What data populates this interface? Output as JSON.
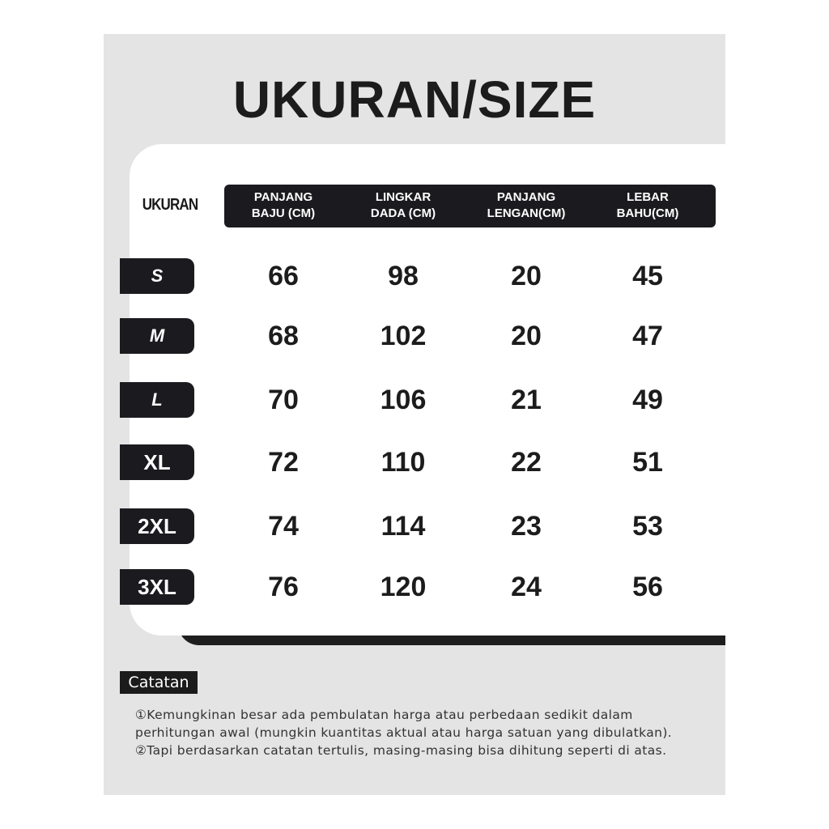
{
  "title": "UKURAN/SIZE",
  "table": {
    "size_label": "UKURAN",
    "columns": [
      [
        "PANJANG",
        "BAJU (CM)"
      ],
      [
        "LINGKAR",
        "DADA (CM)"
      ],
      [
        "PANJANG",
        "LENGAN(CM)"
      ],
      [
        "LEBAR",
        "BAHU(CM)"
      ]
    ],
    "rows": [
      {
        "size": "S",
        "values": [
          "66",
          "98",
          "20",
          "45"
        ]
      },
      {
        "size": "M",
        "values": [
          "68",
          "102",
          "20",
          "47"
        ]
      },
      {
        "size": "L",
        "values": [
          "70",
          "106",
          "21",
          "49"
        ]
      },
      {
        "size": "XL",
        "values": [
          "72",
          "110",
          "22",
          "51"
        ]
      },
      {
        "size": "2XL",
        "values": [
          "74",
          "114",
          "23",
          "53"
        ]
      },
      {
        "size": "3XL",
        "values": [
          "76",
          "120",
          "24",
          "56"
        ]
      }
    ]
  },
  "notes": {
    "label": "Catatan",
    "lines": [
      "①Kemungkinan besar ada pembulatan harga atau perbedaan sedikit dalam",
      "perhitungan awal (mungkin kuantitas aktual atau harga satuan yang dibulatkan).",
      "②Tapi berdasarkan catatan tertulis, masing-masing bisa dihitung seperti di atas."
    ]
  },
  "colors": {
    "background": "#e4e4e4",
    "dark": "#1b1b1f",
    "card": "#ffffff"
  }
}
